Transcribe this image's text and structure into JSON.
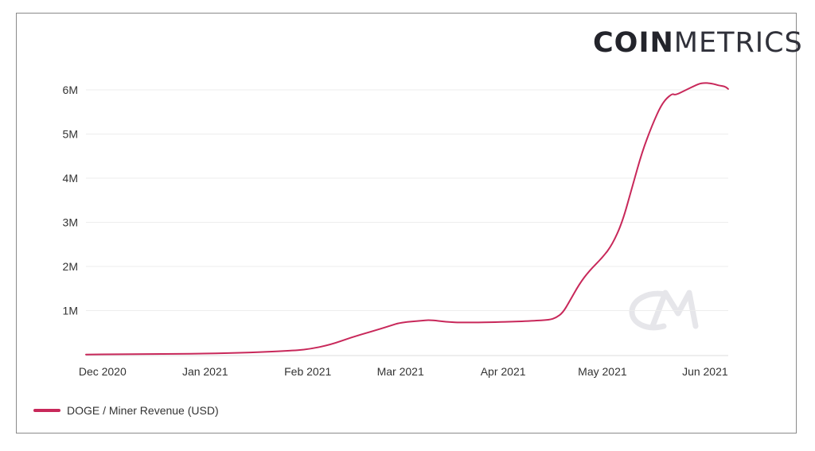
{
  "logo": {
    "bold": "COIN",
    "light": "METRICS"
  },
  "colors": {
    "line": "#c8285a",
    "grid": "#ededed",
    "watermark": "#e6e6ea"
  },
  "chart_data": {
    "type": "line",
    "title": "",
    "xlabel": "",
    "ylabel": "",
    "xlim": [
      "2020-11-26",
      "2021-06-08"
    ],
    "ylim": [
      0,
      6500000
    ],
    "grid": true,
    "legend_position": "bottom-left",
    "y_ticks": [
      {
        "value": 1000000,
        "label": "1M"
      },
      {
        "value": 2000000,
        "label": "2M"
      },
      {
        "value": 3000000,
        "label": "3M"
      },
      {
        "value": 4000000,
        "label": "4M"
      },
      {
        "value": 5000000,
        "label": "5M"
      },
      {
        "value": 6000000,
        "label": "6M"
      }
    ],
    "x_ticks": [
      {
        "date": "2020-12-01",
        "label": "Dec 2020"
      },
      {
        "date": "2021-01-01",
        "label": "Jan 2021"
      },
      {
        "date": "2021-02-01",
        "label": "Feb 2021"
      },
      {
        "date": "2021-03-01",
        "label": "Mar 2021"
      },
      {
        "date": "2021-04-01",
        "label": "Apr 2021"
      },
      {
        "date": "2021-05-01",
        "label": "May 2021"
      },
      {
        "date": "2021-06-01",
        "label": "Jun 2021"
      }
    ],
    "series": [
      {
        "name": "DOGE / Miner Revenue (USD)",
        "points": [
          [
            "2020-11-26",
            5000
          ],
          [
            "2020-12-15",
            15000
          ],
          [
            "2021-01-01",
            25000
          ],
          [
            "2021-01-15",
            50000
          ],
          [
            "2021-01-26",
            90000
          ],
          [
            "2021-02-01",
            120000
          ],
          [
            "2021-02-08",
            230000
          ],
          [
            "2021-02-14",
            390000
          ],
          [
            "2021-02-20",
            520000
          ],
          [
            "2021-02-26",
            660000
          ],
          [
            "2021-03-01",
            730000
          ],
          [
            "2021-03-07",
            770000
          ],
          [
            "2021-03-10",
            790000
          ],
          [
            "2021-03-15",
            740000
          ],
          [
            "2021-03-20",
            730000
          ],
          [
            "2021-04-01",
            740000
          ],
          [
            "2021-04-10",
            770000
          ],
          [
            "2021-04-15",
            790000
          ],
          [
            "2021-04-17",
            840000
          ],
          [
            "2021-04-19",
            950000
          ],
          [
            "2021-04-21",
            1200000
          ],
          [
            "2021-04-24",
            1600000
          ],
          [
            "2021-04-27",
            1900000
          ],
          [
            "2021-05-01",
            2200000
          ],
          [
            "2021-05-04",
            2500000
          ],
          [
            "2021-05-07",
            3000000
          ],
          [
            "2021-05-10",
            3800000
          ],
          [
            "2021-05-13",
            4600000
          ],
          [
            "2021-05-16",
            5200000
          ],
          [
            "2021-05-19",
            5700000
          ],
          [
            "2021-05-22",
            5920000
          ],
          [
            "2021-05-23",
            5880000
          ],
          [
            "2021-05-26",
            5990000
          ],
          [
            "2021-05-29",
            6100000
          ],
          [
            "2021-05-31",
            6160000
          ],
          [
            "2021-06-03",
            6150000
          ],
          [
            "2021-06-05",
            6100000
          ],
          [
            "2021-06-07",
            6080000
          ],
          [
            "2021-06-08",
            6020000
          ]
        ]
      }
    ]
  },
  "legend": {
    "label": "DOGE / Miner Revenue (USD)"
  }
}
